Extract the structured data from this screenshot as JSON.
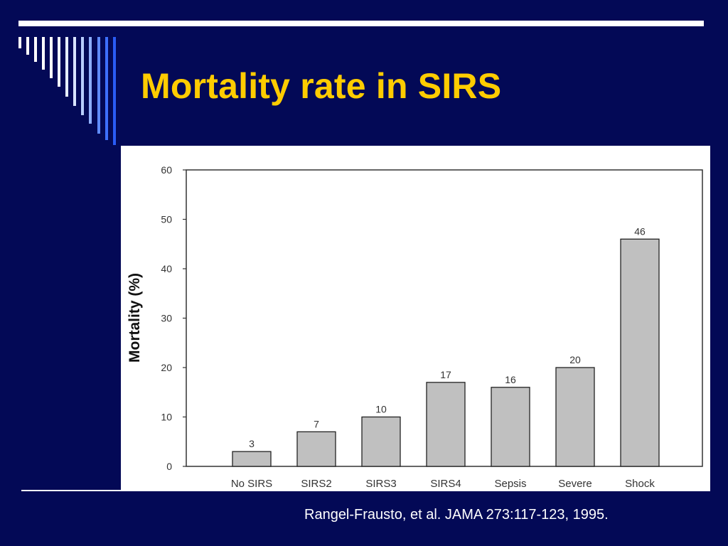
{
  "slide": {
    "title": "Mortality rate in SIRS",
    "citation": "Rangel-Frausto, et al. JAMA 273:117-123, 1995.",
    "background_color": "#030956",
    "title_color": "#ffcc00",
    "decoration_icon": "vertical-stripes-decoration"
  },
  "chart_data": {
    "type": "bar",
    "title": "",
    "xlabel": "",
    "ylabel": "Mortality (%)",
    "categories": [
      "No SIRS",
      "SIRS2",
      "SIRS3",
      "SIRS4",
      "Sepsis",
      "Severe",
      "Shock"
    ],
    "tick_labels": [
      "No SIRS",
      "SIRS2",
      "SIRS3",
      "SIRS4",
      "Sepsis",
      "Severe",
      "Shock"
    ],
    "values": [
      3,
      7,
      10,
      17,
      16,
      20,
      46
    ],
    "data_labels": [
      "3",
      "7",
      "10",
      "17",
      "16",
      "20",
      "46"
    ],
    "ylim": [
      0,
      60
    ],
    "yticks": [
      0,
      10,
      20,
      30,
      40,
      50,
      60
    ],
    "ytick_labels": [
      "0",
      "10",
      "20",
      "30",
      "40",
      "50",
      "60"
    ],
    "grid": false,
    "legend": "none",
    "bar_color": "#c0c0c0",
    "bar_edge_color": "#222222"
  }
}
